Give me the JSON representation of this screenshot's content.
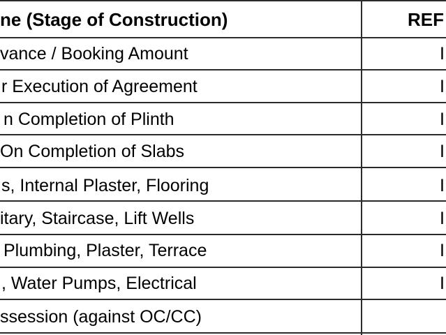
{
  "table": {
    "header": {
      "stage": "ne (Stage of Construction)",
      "ref": "REF"
    },
    "rows": [
      {
        "stage": "vance / Booking Amount",
        "ref": "I"
      },
      {
        "stage": "r Execution of Agreement",
        "ref": "I"
      },
      {
        "stage": "n Completion of Plinth",
        "ref": "I"
      },
      {
        "stage": "On Completion of Slabs",
        "ref": "I"
      },
      {
        "stage": "s, Internal Plaster, Flooring",
        "ref": "I"
      },
      {
        "stage": "itary, Staircase, Lift Wells",
        "ref": "I"
      },
      {
        "stage": "Plumbing, Plaster, Terrace",
        "ref": "I"
      },
      {
        "stage": ", Water Pumps, Electrical",
        "ref": "I"
      },
      {
        "stage": "ssession (against OC/CC)",
        "ref": ""
      }
    ]
  }
}
